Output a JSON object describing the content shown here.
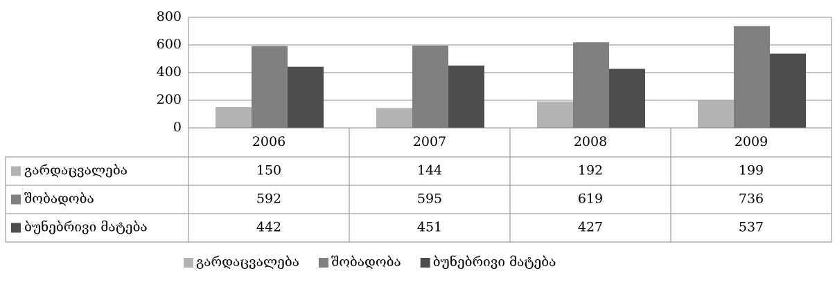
{
  "chart_data": {
    "type": "bar",
    "categories": [
      "2006",
      "2007",
      "2008",
      "2009"
    ],
    "series": [
      {
        "name": "გარდაცვალება",
        "color": "#b3b3b3",
        "values": [
          150,
          144,
          192,
          199
        ]
      },
      {
        "name": "შობადობა",
        "color": "#808080",
        "values": [
          592,
          595,
          619,
          736
        ]
      },
      {
        "name": "ბუნებრივი მატება",
        "color": "#4d4d4d",
        "values": [
          442,
          451,
          427,
          537
        ]
      }
    ],
    "ylim": [
      0,
      800
    ],
    "yticks": [
      0,
      200,
      400,
      600,
      800
    ],
    "grid": true,
    "legend": "bottom"
  }
}
